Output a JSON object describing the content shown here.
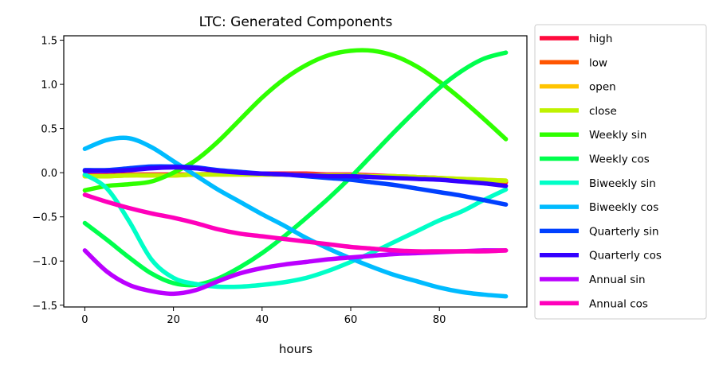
{
  "chart_data": {
    "type": "line",
    "title": "LTC: Generated Components",
    "xlabel": "hours",
    "ylabel": "",
    "xlim": [
      -4.75,
      99.75
    ],
    "ylim": [
      -1.52,
      1.55
    ],
    "xticks": [
      0,
      20,
      40,
      60,
      80
    ],
    "xtick_labels": [
      "0",
      "20",
      "40",
      "60",
      "80"
    ],
    "yticks": [
      -1.5,
      -1.0,
      -0.5,
      0.0,
      0.5,
      1.0,
      1.5
    ],
    "ytick_labels": [
      "−1.5",
      "−1.0",
      "−0.5",
      "0.0",
      "0.5",
      "1.0",
      "1.5"
    ],
    "grid": false,
    "legend_position": "outside-right",
    "x": [
      0,
      5,
      10,
      15,
      20,
      25,
      30,
      35,
      40,
      45,
      50,
      55,
      60,
      65,
      70,
      75,
      80,
      85,
      90,
      95
    ],
    "series": [
      {
        "name": "high",
        "color": "#ff0a3d",
        "values": [
          -0.03,
          -0.03,
          -0.02,
          -0.02,
          -0.02,
          -0.02,
          -0.01,
          -0.01,
          -0.01,
          -0.01,
          -0.01,
          -0.02,
          -0.02,
          -0.03,
          -0.04,
          -0.05,
          -0.06,
          -0.08,
          -0.09,
          -0.11
        ]
      },
      {
        "name": "low",
        "color": "#ff5500",
        "values": [
          -0.04,
          -0.04,
          -0.03,
          -0.03,
          -0.03,
          -0.02,
          -0.02,
          -0.02,
          -0.02,
          -0.02,
          -0.02,
          -0.03,
          -0.03,
          -0.04,
          -0.05,
          -0.06,
          -0.07,
          -0.08,
          -0.09,
          -0.1
        ]
      },
      {
        "name": "open",
        "color": "#ffc400",
        "values": [
          -0.04,
          -0.04,
          -0.03,
          -0.03,
          -0.03,
          -0.02,
          -0.02,
          -0.02,
          -0.02,
          -0.02,
          -0.03,
          -0.03,
          -0.03,
          -0.04,
          -0.04,
          -0.05,
          -0.06,
          -0.07,
          -0.08,
          -0.09
        ]
      },
      {
        "name": "close",
        "color": "#bff200",
        "values": [
          -0.04,
          -0.04,
          -0.03,
          -0.03,
          -0.03,
          -0.02,
          -0.02,
          -0.02,
          -0.02,
          -0.02,
          -0.03,
          -0.03,
          -0.03,
          -0.04,
          -0.04,
          -0.05,
          -0.06,
          -0.07,
          -0.08,
          -0.09
        ]
      },
      {
        "name": "Weekly sin",
        "color": "#2fff00",
        "values": [
          -0.2,
          -0.15,
          -0.13,
          -0.1,
          0.0,
          0.14,
          0.35,
          0.6,
          0.85,
          1.06,
          1.22,
          1.33,
          1.38,
          1.38,
          1.32,
          1.2,
          1.03,
          0.83,
          0.61,
          0.38
        ]
      },
      {
        "name": "Weekly cos",
        "color": "#00ff4d",
        "values": [
          -0.57,
          -0.76,
          -0.96,
          -1.14,
          -1.25,
          -1.27,
          -1.2,
          -1.07,
          -0.91,
          -0.72,
          -0.51,
          -0.29,
          -0.05,
          0.21,
          0.47,
          0.72,
          0.96,
          1.15,
          1.29,
          1.36
        ]
      },
      {
        "name": "Biweekly sin",
        "color": "#00ffc7",
        "values": [
          -0.02,
          -0.18,
          -0.55,
          -0.98,
          -1.19,
          -1.26,
          -1.29,
          -1.29,
          -1.27,
          -1.24,
          -1.19,
          -1.11,
          -1.01,
          -0.9,
          -0.78,
          -0.66,
          -0.54,
          -0.44,
          -0.31,
          -0.19
        ]
      },
      {
        "name": "Biweekly cos",
        "color": "#00bbff",
        "values": [
          0.27,
          0.37,
          0.39,
          0.29,
          0.13,
          -0.03,
          -0.19,
          -0.33,
          -0.47,
          -0.6,
          -0.74,
          -0.86,
          -0.97,
          -1.07,
          -1.16,
          -1.23,
          -1.3,
          -1.35,
          -1.38,
          -1.4
        ]
      },
      {
        "name": "Quarterly sin",
        "color": "#0040ff",
        "values": [
          0.03,
          0.03,
          0.05,
          0.07,
          0.07,
          0.06,
          0.03,
          0.01,
          -0.01,
          -0.02,
          -0.04,
          -0.06,
          -0.08,
          -0.11,
          -0.14,
          -0.18,
          -0.22,
          -0.26,
          -0.31,
          -0.36
        ]
      },
      {
        "name": "Quarterly cos",
        "color": "#3300ff",
        "values": [
          0.02,
          0.02,
          0.03,
          0.05,
          0.06,
          0.05,
          0.02,
          0.0,
          -0.01,
          -0.02,
          -0.03,
          -0.04,
          -0.04,
          -0.05,
          -0.06,
          -0.07,
          -0.08,
          -0.1,
          -0.12,
          -0.15
        ]
      },
      {
        "name": "Annual sin",
        "color": "#bb00ff",
        "values": [
          -0.88,
          -1.12,
          -1.27,
          -1.34,
          -1.37,
          -1.33,
          -1.23,
          -1.14,
          -1.08,
          -1.04,
          -1.01,
          -0.98,
          -0.96,
          -0.94,
          -0.92,
          -0.91,
          -0.9,
          -0.89,
          -0.88,
          -0.88
        ]
      },
      {
        "name": "Annual cos",
        "color": "#ff00bb",
        "values": [
          -0.25,
          -0.33,
          -0.4,
          -0.46,
          -0.51,
          -0.57,
          -0.64,
          -0.69,
          -0.72,
          -0.75,
          -0.78,
          -0.81,
          -0.84,
          -0.86,
          -0.88,
          -0.89,
          -0.89,
          -0.89,
          -0.89,
          -0.88
        ]
      }
    ]
  }
}
